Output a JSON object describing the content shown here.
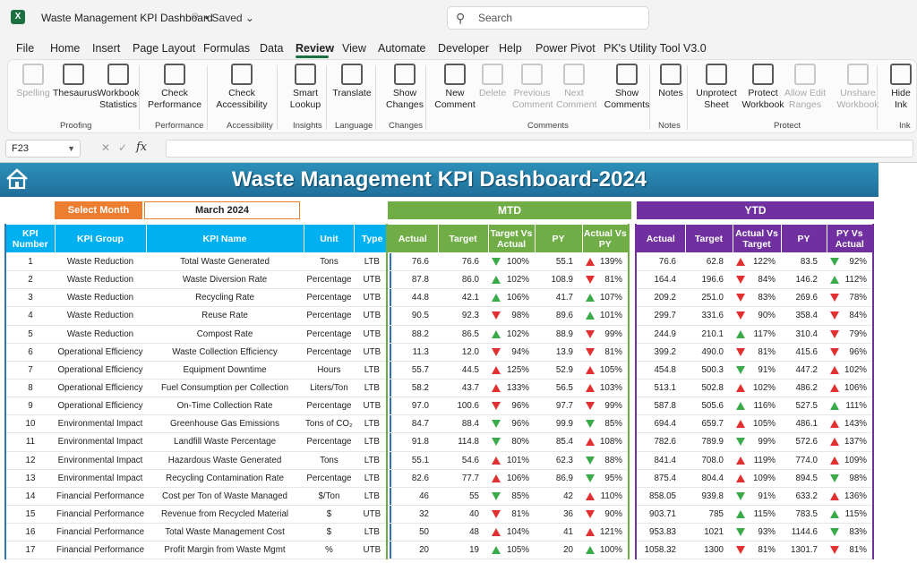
{
  "titlebar": {
    "doc_title": "Waste Management KPI Dashboard",
    "saved": "• Saved",
    "search_placeholder": "Search"
  },
  "menu": [
    "File",
    "Home",
    "Insert",
    "Page Layout",
    "Formulas",
    "Data",
    "Review",
    "View",
    "Automate",
    "Developer",
    "Help",
    "Power Pivot",
    "PK's Utility Tool V3.0"
  ],
  "ribbon": {
    "buttons": [
      {
        "label": "Spelling",
        "icon": "spelling-icon",
        "enabled": false
      },
      {
        "label": "Thesaurus",
        "icon": "thesaurus-icon",
        "enabled": true
      },
      {
        "label": "Workbook Statistics",
        "icon": "workbook-statistics-icon",
        "enabled": true
      },
      {
        "label": "Check Performance",
        "icon": "check-performance-icon",
        "enabled": true
      },
      {
        "label": "Check Accessibility",
        "icon": "check-accessibility-icon",
        "enabled": true
      },
      {
        "label": "Smart Lookup",
        "icon": "smart-lookup-icon",
        "enabled": true
      },
      {
        "label": "Translate",
        "icon": "translate-icon",
        "enabled": true
      },
      {
        "label": "Show Changes",
        "icon": "show-changes-icon",
        "enabled": true
      },
      {
        "label": "New Comment",
        "icon": "new-comment-icon",
        "enabled": true
      },
      {
        "label": "Delete",
        "icon": "delete-comment-icon",
        "enabled": false
      },
      {
        "label": "Previous Comment",
        "icon": "previous-comment-icon",
        "enabled": false
      },
      {
        "label": "Next Comment",
        "icon": "next-comment-icon",
        "enabled": false
      },
      {
        "label": "Show Comments",
        "icon": "show-comments-icon",
        "enabled": true
      },
      {
        "label": "Notes",
        "icon": "notes-icon",
        "enabled": true
      },
      {
        "label": "Unprotect Sheet",
        "icon": "unprotect-sheet-icon",
        "enabled": true
      },
      {
        "label": "Protect Workbook",
        "icon": "protect-workbook-icon",
        "enabled": true
      },
      {
        "label": "Allow Edit Ranges",
        "icon": "allow-edit-ranges-icon",
        "enabled": false
      },
      {
        "label": "Unshare Workbook",
        "icon": "unshare-workbook-icon",
        "enabled": false
      },
      {
        "label": "Hide Ink",
        "icon": "hide-ink-icon",
        "enabled": true
      }
    ],
    "groups": [
      "Proofing",
      "Performance",
      "Accessibility",
      "Insights",
      "Language",
      "Changes",
      "Comments",
      "Notes",
      "Protect",
      "Ink"
    ]
  },
  "formula_bar": {
    "name_box": "F23",
    "fx": "fx",
    "formula": ""
  },
  "dashboard": {
    "title": "Waste Management KPI Dashboard-2024",
    "select_month_label": "Select Month",
    "month": "March 2024",
    "mtd_label": "MTD",
    "ytd_label": "YTD",
    "left_headers": [
      "KPI Number",
      "KPI Group",
      "KPI Name",
      "Unit",
      "Type"
    ],
    "mtd_headers": [
      "Actual",
      "Target",
      "Target Vs Actual",
      "PY",
      "Actual Vs PY"
    ],
    "ytd_headers": [
      "Actual",
      "Target",
      "Actual Vs Target",
      "PY",
      "PY Vs Actual"
    ],
    "rows": [
      {
        "n": "1",
        "group": "Waste Reduction",
        "name": "Total Waste Generated",
        "unit": "Tons",
        "type": "LTB",
        "m_act": "76.6",
        "m_tgt": "76.6",
        "m_tva": "100%",
        "m_tva_dir": "down-good",
        "m_py": "55.1",
        "m_avp": "139%",
        "m_avp_dir": "up-bad",
        "y_act": "76.6",
        "y_tgt": "62.8",
        "y_avt": "122%",
        "y_avt_dir": "up-bad",
        "y_py": "83.5",
        "y_pva": "92%",
        "y_pva_dir": "down-good"
      },
      {
        "n": "2",
        "group": "Waste Reduction",
        "name": "Waste Diversion Rate",
        "unit": "Percentage",
        "type": "UTB",
        "m_act": "87.8",
        "m_tgt": "86.0",
        "m_tva": "102%",
        "m_tva_dir": "up-good",
        "m_py": "108.9",
        "m_avp": "81%",
        "m_avp_dir": "down-bad",
        "y_act": "164.4",
        "y_tgt": "196.6",
        "y_avt": "84%",
        "y_avt_dir": "down-bad",
        "y_py": "146.2",
        "y_pva": "112%",
        "y_pva_dir": "up-good"
      },
      {
        "n": "3",
        "group": "Waste Reduction",
        "name": "Recycling Rate",
        "unit": "Percentage",
        "type": "UTB",
        "m_act": "44.8",
        "m_tgt": "42.1",
        "m_tva": "106%",
        "m_tva_dir": "up-good",
        "m_py": "41.7",
        "m_avp": "107%",
        "m_avp_dir": "up-good",
        "y_act": "209.2",
        "y_tgt": "251.0",
        "y_avt": "83%",
        "y_avt_dir": "down-bad",
        "y_py": "269.6",
        "y_pva": "78%",
        "y_pva_dir": "down-bad"
      },
      {
        "n": "4",
        "group": "Waste Reduction",
        "name": "Reuse Rate",
        "unit": "Percentage",
        "type": "UTB",
        "m_act": "90.5",
        "m_tgt": "92.3",
        "m_tva": "98%",
        "m_tva_dir": "down-bad",
        "m_py": "89.6",
        "m_avp": "101%",
        "m_avp_dir": "up-good",
        "y_act": "299.7",
        "y_tgt": "331.6",
        "y_avt": "90%",
        "y_avt_dir": "down-bad",
        "y_py": "358.4",
        "y_pva": "84%",
        "y_pva_dir": "down-bad"
      },
      {
        "n": "5",
        "group": "Waste Reduction",
        "name": "Compost Rate",
        "unit": "Percentage",
        "type": "UTB",
        "m_act": "88.2",
        "m_tgt": "86.5",
        "m_tva": "102%",
        "m_tva_dir": "up-good",
        "m_py": "88.9",
        "m_avp": "99%",
        "m_avp_dir": "down-bad",
        "y_act": "244.9",
        "y_tgt": "210.1",
        "y_avt": "117%",
        "y_avt_dir": "up-good",
        "y_py": "310.4",
        "y_pva": "79%",
        "y_pva_dir": "down-bad"
      },
      {
        "n": "6",
        "group": "Operational Efficiency",
        "name": "Waste Collection Efficiency",
        "unit": "Percentage",
        "type": "UTB",
        "m_act": "11.3",
        "m_tgt": "12.0",
        "m_tva": "94%",
        "m_tva_dir": "down-bad",
        "m_py": "13.9",
        "m_avp": "81%",
        "m_avp_dir": "down-bad",
        "y_act": "399.2",
        "y_tgt": "490.0",
        "y_avt": "81%",
        "y_avt_dir": "down-bad",
        "y_py": "415.6",
        "y_pva": "96%",
        "y_pva_dir": "down-bad"
      },
      {
        "n": "7",
        "group": "Operational Efficiency",
        "name": "Equipment Downtime",
        "unit": "Hours",
        "type": "LTB",
        "m_act": "55.7",
        "m_tgt": "44.5",
        "m_tva": "125%",
        "m_tva_dir": "up-bad",
        "m_py": "52.9",
        "m_avp": "105%",
        "m_avp_dir": "up-bad",
        "y_act": "454.8",
        "y_tgt": "500.3",
        "y_avt": "91%",
        "y_avt_dir": "down-good",
        "y_py": "447.2",
        "y_pva": "102%",
        "y_pva_dir": "up-bad"
      },
      {
        "n": "8",
        "group": "Operational Efficiency",
        "name": "Fuel Consumption per Collection",
        "unit": "Liters/Ton",
        "type": "LTB",
        "m_act": "58.2",
        "m_tgt": "43.7",
        "m_tva": "133%",
        "m_tva_dir": "up-bad",
        "m_py": "56.5",
        "m_avp": "103%",
        "m_avp_dir": "up-bad",
        "y_act": "513.1",
        "y_tgt": "502.8",
        "y_avt": "102%",
        "y_avt_dir": "up-bad",
        "y_py": "486.2",
        "y_pva": "106%",
        "y_pva_dir": "up-bad"
      },
      {
        "n": "9",
        "group": "Operational Efficiency",
        "name": "On-Time Collection Rate",
        "unit": "Percentage",
        "type": "UTB",
        "m_act": "97.0",
        "m_tgt": "100.6",
        "m_tva": "96%",
        "m_tva_dir": "down-bad",
        "m_py": "97.7",
        "m_avp": "99%",
        "m_avp_dir": "down-bad",
        "y_act": "587.8",
        "y_tgt": "505.6",
        "y_avt": "116%",
        "y_avt_dir": "up-good",
        "y_py": "527.5",
        "y_pva": "111%",
        "y_pva_dir": "up-good"
      },
      {
        "n": "10",
        "group": "Environmental Impact",
        "name": "Greenhouse Gas Emissions",
        "unit": "Tons of CO₂",
        "type": "LTB",
        "m_act": "84.7",
        "m_tgt": "88.4",
        "m_tva": "96%",
        "m_tva_dir": "down-good",
        "m_py": "99.9",
        "m_avp": "85%",
        "m_avp_dir": "down-good",
        "y_act": "694.4",
        "y_tgt": "659.7",
        "y_avt": "105%",
        "y_avt_dir": "up-bad",
        "y_py": "486.1",
        "y_pva": "143%",
        "y_pva_dir": "up-bad"
      },
      {
        "n": "11",
        "group": "Environmental Impact",
        "name": "Landfill Waste Percentage",
        "unit": "Percentage",
        "type": "LTB",
        "m_act": "91.8",
        "m_tgt": "114.8",
        "m_tva": "80%",
        "m_tva_dir": "down-good",
        "m_py": "85.4",
        "m_avp": "108%",
        "m_avp_dir": "up-bad",
        "y_act": "782.6",
        "y_tgt": "789.9",
        "y_avt": "99%",
        "y_avt_dir": "down-good",
        "y_py": "572.6",
        "y_pva": "137%",
        "y_pva_dir": "up-bad"
      },
      {
        "n": "12",
        "group": "Environmental Impact",
        "name": "Hazardous Waste Generated",
        "unit": "Tons",
        "type": "LTB",
        "m_act": "55.1",
        "m_tgt": "54.6",
        "m_tva": "101%",
        "m_tva_dir": "up-bad",
        "m_py": "62.3",
        "m_avp": "88%",
        "m_avp_dir": "down-good",
        "y_act": "841.4",
        "y_tgt": "708.0",
        "y_avt": "119%",
        "y_avt_dir": "up-bad",
        "y_py": "774.0",
        "y_pva": "109%",
        "y_pva_dir": "up-bad"
      },
      {
        "n": "13",
        "group": "Environmental Impact",
        "name": "Recycling Contamination Rate",
        "unit": "Percentage",
        "type": "LTB",
        "m_act": "82.6",
        "m_tgt": "77.7",
        "m_tva": "106%",
        "m_tva_dir": "up-bad",
        "m_py": "86.9",
        "m_avp": "95%",
        "m_avp_dir": "down-good",
        "y_act": "875.4",
        "y_tgt": "804.4",
        "y_avt": "109%",
        "y_avt_dir": "up-bad",
        "y_py": "894.5",
        "y_pva": "98%",
        "y_pva_dir": "down-good"
      },
      {
        "n": "14",
        "group": "Financial Performance",
        "name": "Cost per Ton of Waste Managed",
        "unit": "$/Ton",
        "type": "LTB",
        "m_act": "46",
        "m_tgt": "55",
        "m_tva": "85%",
        "m_tva_dir": "down-good",
        "m_py": "42",
        "m_avp": "110%",
        "m_avp_dir": "up-bad",
        "y_act": "858.05",
        "y_tgt": "939.8",
        "y_avt": "91%",
        "y_avt_dir": "down-good",
        "y_py": "633.2",
        "y_pva": "136%",
        "y_pva_dir": "up-bad"
      },
      {
        "n": "15",
        "group": "Financial Performance",
        "name": "Revenue from Recycled Material",
        "unit": "$",
        "type": "UTB",
        "m_act": "32",
        "m_tgt": "40",
        "m_tva": "81%",
        "m_tva_dir": "down-bad",
        "m_py": "36",
        "m_avp": "90%",
        "m_avp_dir": "down-bad",
        "y_act": "903.71",
        "y_tgt": "785",
        "y_avt": "115%",
        "y_avt_dir": "up-good",
        "y_py": "783.5",
        "y_pva": "115%",
        "y_pva_dir": "up-good"
      },
      {
        "n": "16",
        "group": "Financial Performance",
        "name": "Total Waste Management Cost",
        "unit": "$",
        "type": "LTB",
        "m_act": "50",
        "m_tgt": "48",
        "m_tva": "104%",
        "m_tva_dir": "up-bad",
        "m_py": "41",
        "m_avp": "121%",
        "m_avp_dir": "up-bad",
        "y_act": "953.83",
        "y_tgt": "1021",
        "y_avt": "93%",
        "y_avt_dir": "down-good",
        "y_py": "1144.6",
        "y_pva": "83%",
        "y_pva_dir": "down-good"
      },
      {
        "n": "17",
        "group": "Financial Performance",
        "name": "Profit Margin from Waste Mgmt",
        "unit": "%",
        "type": "UTB",
        "m_act": "20",
        "m_tgt": "19",
        "m_tva": "105%",
        "m_tva_dir": "up-good",
        "m_py": "20",
        "m_avp": "100%",
        "m_avp_dir": "up-good",
        "y_act": "1058.32",
        "y_tgt": "1300",
        "y_avt": "81%",
        "y_avt_dir": "down-bad",
        "y_py": "1301.7",
        "y_pva": "81%",
        "y_pva_dir": "down-bad"
      }
    ]
  },
  "colors": {
    "excel_green": "#1d6f42",
    "banner": "#1f6f9a",
    "kpi_header": "#00b0f0",
    "mtd": "#70ad47",
    "ytd": "#7030a0",
    "select_month": "#ed7d31",
    "arrow_green": "#3bab4a",
    "arrow_red": "#e03030"
  }
}
